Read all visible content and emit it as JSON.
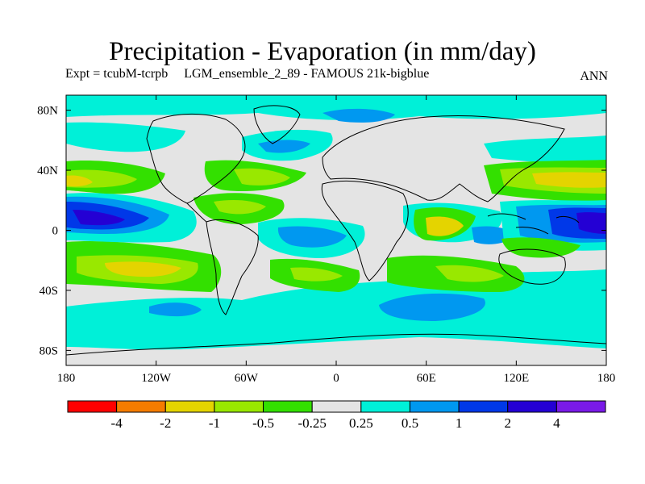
{
  "header": {
    "title": "Precipitation - Evaporation (in mm/day)",
    "subtitle_left": "Expt = tcubM-tcrpb",
    "subtitle_right": "LGM_ensemble_2_89 - FAMOUS 21k-bigblue",
    "season": "ANN"
  },
  "axes": {
    "lon_ticks": [
      "180",
      "120W",
      "60W",
      "0",
      "60E",
      "120E",
      "180"
    ],
    "lat_ticks": [
      "80N",
      "40N",
      "0",
      "40S",
      "80S"
    ]
  },
  "colorbar": {
    "colors": [
      "#ff0000",
      "#f47c00",
      "#e4d400",
      "#99e800",
      "#33e000",
      "#e4e4e4",
      "#00f0d8",
      "#0098f0",
      "#0038e8",
      "#2400d4",
      "#7a1ae8"
    ],
    "labels": [
      "-4",
      "-2",
      "-1",
      "-0.5",
      "-0.25",
      "0.25",
      "0.5",
      "1",
      "2",
      "4"
    ]
  },
  "fill_colors": {
    "ocean_neutral": "#e4e4e4",
    "neg_025": "#33e000",
    "neg_05": "#99e800",
    "neg_1": "#e4d400",
    "neg_2": "#f47c00",
    "pos_025": "#00f0d8",
    "pos_05": "#0098f0",
    "pos_1": "#0038e8",
    "pos_2": "#2400d4"
  }
}
